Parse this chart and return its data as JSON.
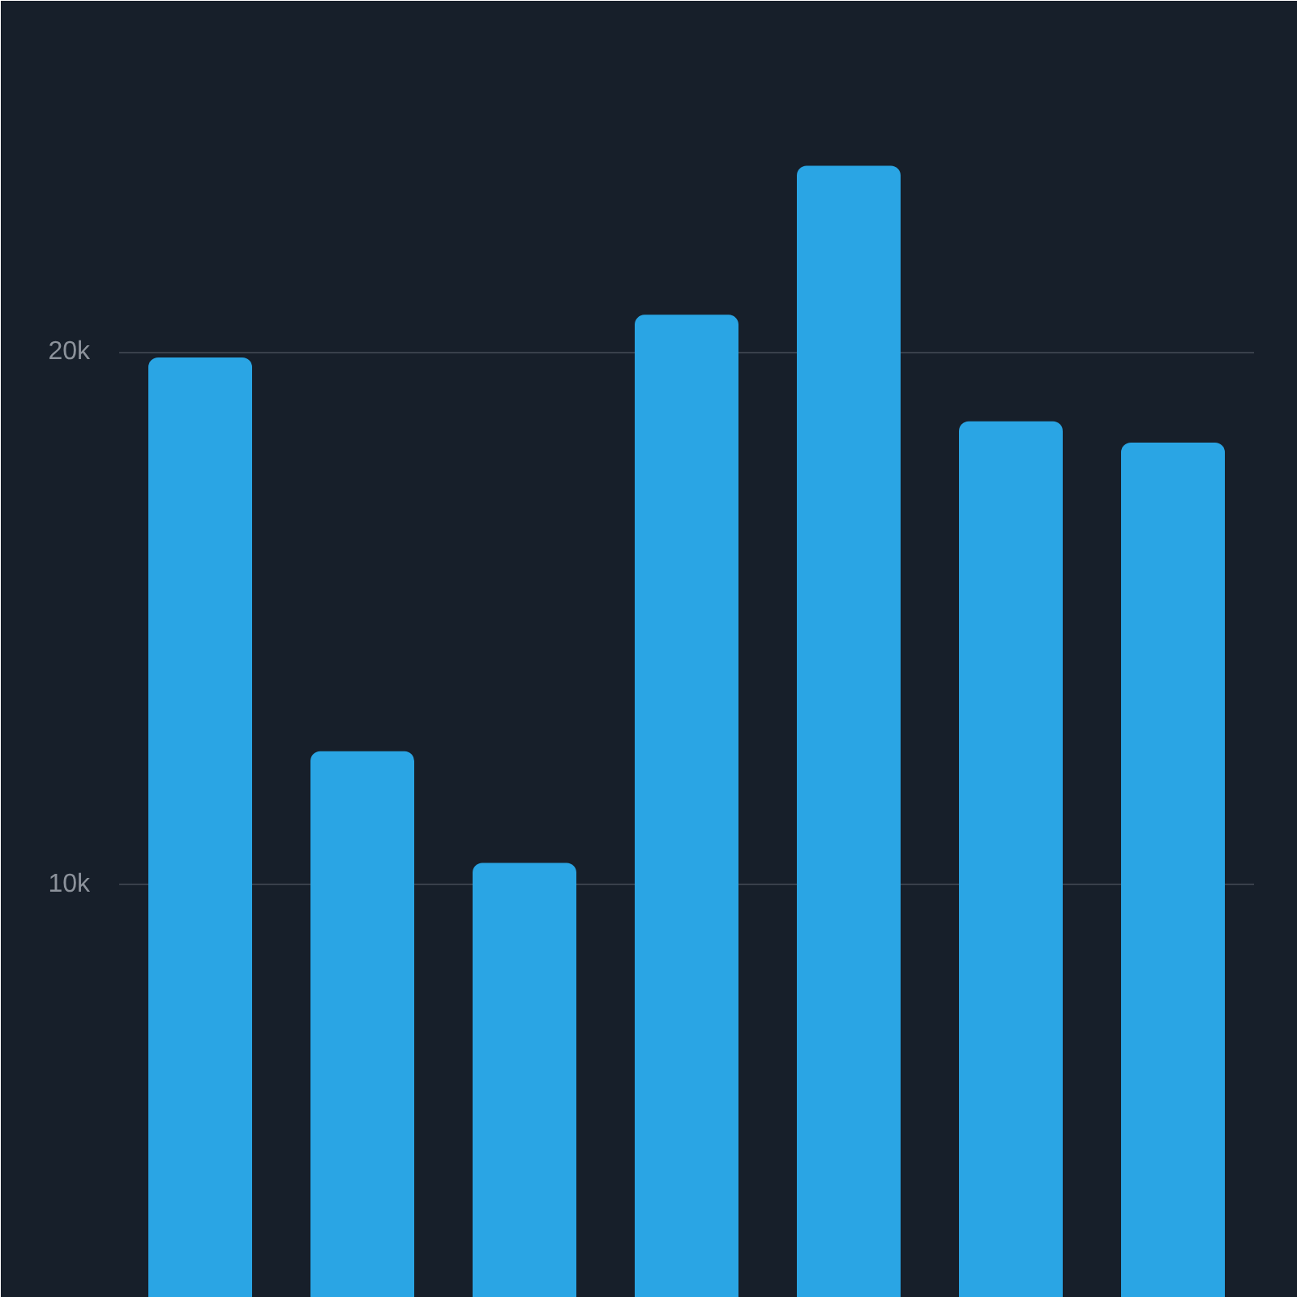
{
  "chart_data": {
    "type": "bar",
    "categories": [
      null,
      null,
      null,
      null,
      null,
      null,
      null
    ],
    "values": [
      19900,
      12500,
      10400,
      20700,
      23500,
      18700,
      18300
    ],
    "color": "#2aa5e4",
    "ylim": [
      2230,
      26600
    ],
    "yticks": [
      {
        "value": 10000,
        "label": "10k"
      },
      {
        "value": 20000,
        "label": "20k"
      }
    ],
    "grid": "y",
    "tick_labels": "y"
  }
}
